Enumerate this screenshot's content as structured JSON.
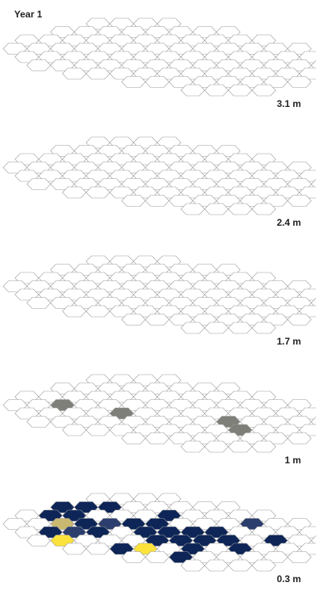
{
  "title": "Year 1",
  "colors": {
    "empty": "#ffffff",
    "outline": "#9a9a9a",
    "navy": "#0d2557",
    "slate": "#2c3e6e",
    "grey": "#7f7f7a",
    "khaki": "#c9b870",
    "yellow": "#fbe33b"
  },
  "chart_data": {
    "type": "heatmap",
    "title": "Year 1",
    "layers": [
      {
        "label": "3.1 m",
        "cells": []
      },
      {
        "label": "2.4 m",
        "cells": []
      },
      {
        "label": "1.7 m",
        "cells": []
      },
      {
        "label": "1 m",
        "cells": [
          {
            "row": 3,
            "col": 2,
            "color": "grey"
          },
          {
            "row": 4,
            "col": 4,
            "color": "grey"
          },
          {
            "row": 5,
            "col": 8,
            "color": "grey"
          },
          {
            "row": 6,
            "col": 8,
            "color": "grey"
          }
        ]
      },
      {
        "label": "0.3 m",
        "cells": [
          {
            "row": 1,
            "col": 3,
            "color": "navy"
          },
          {
            "row": 1,
            "col": 4,
            "color": "navy"
          },
          {
            "row": 1,
            "col": 5,
            "color": "navy"
          },
          {
            "row": 2,
            "col": 2,
            "color": "navy"
          },
          {
            "row": 2,
            "col": 3,
            "color": "navy"
          },
          {
            "row": 2,
            "col": 7,
            "color": "navy"
          },
          {
            "row": 3,
            "col": 2,
            "color": "khaki"
          },
          {
            "row": 3,
            "col": 3,
            "color": "navy"
          },
          {
            "row": 3,
            "col": 4,
            "color": "slate"
          },
          {
            "row": 3,
            "col": 5,
            "color": "navy"
          },
          {
            "row": 3,
            "col": 6,
            "color": "navy"
          },
          {
            "row": 3,
            "col": 10,
            "color": "slate"
          },
          {
            "row": 4,
            "col": 1,
            "color": "navy"
          },
          {
            "row": 4,
            "col": 2,
            "color": "slate"
          },
          {
            "row": 4,
            "col": 3,
            "color": "navy"
          },
          {
            "row": 4,
            "col": 5,
            "color": "navy"
          },
          {
            "row": 4,
            "col": 6,
            "color": "navy"
          },
          {
            "row": 4,
            "col": 7,
            "color": "navy"
          },
          {
            "row": 4,
            "col": 8,
            "color": "navy"
          },
          {
            "row": 5,
            "col": 1,
            "color": "yellow"
          },
          {
            "row": 5,
            "col": 5,
            "color": "navy"
          },
          {
            "row": 5,
            "col": 6,
            "color": "navy"
          },
          {
            "row": 5,
            "col": 7,
            "color": "navy"
          },
          {
            "row": 5,
            "col": 8,
            "color": "navy"
          },
          {
            "row": 5,
            "col": 10,
            "color": "navy"
          },
          {
            "row": 6,
            "col": 3,
            "color": "navy"
          },
          {
            "row": 6,
            "col": 4,
            "color": "yellow"
          },
          {
            "row": 6,
            "col": 6,
            "color": "navy"
          },
          {
            "row": 6,
            "col": 8,
            "color": "navy"
          },
          {
            "row": 7,
            "col": 5,
            "color": "navy"
          }
        ]
      }
    ]
  }
}
